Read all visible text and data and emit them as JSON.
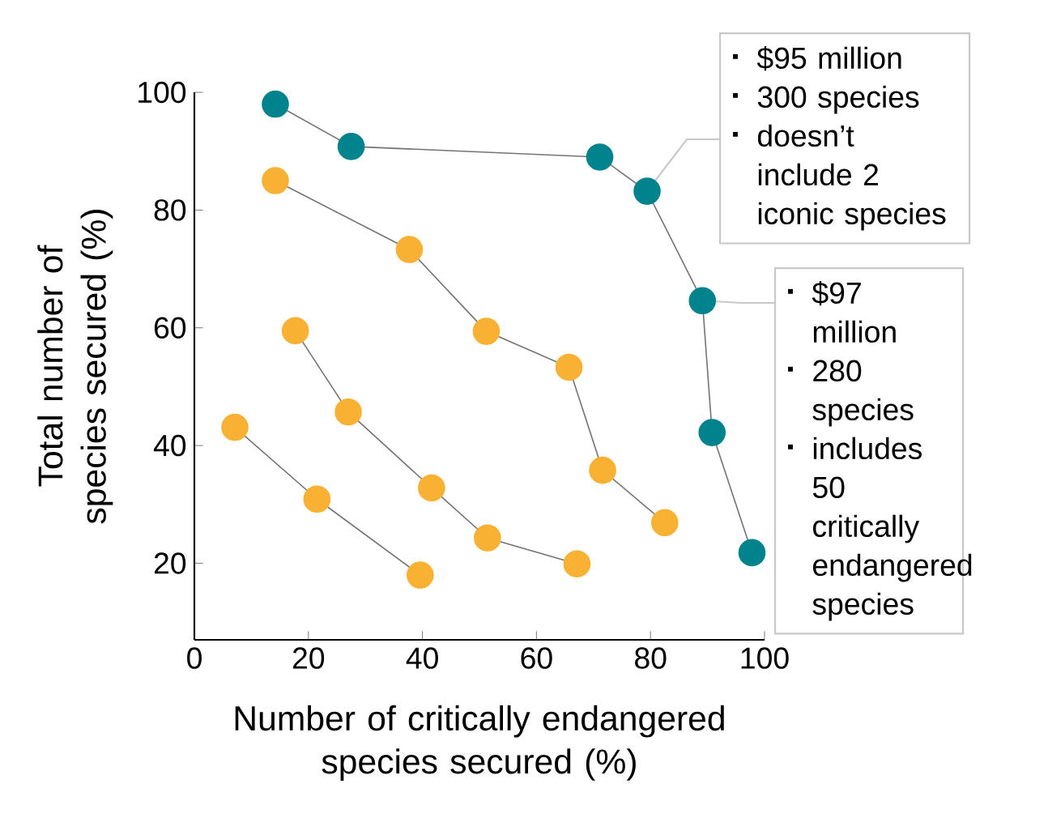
{
  "chart_data": {
    "type": "line",
    "xlabel": "Number of critically endangered species secured (%)",
    "ylabel": "Total number of species secured (%)",
    "xlim": [
      0,
      100
    ],
    "ylim": [
      7,
      100
    ],
    "xticks": [
      0,
      20,
      40,
      60,
      80,
      100
    ],
    "yticks": [
      20,
      40,
      60,
      80,
      100
    ],
    "marker": "circle",
    "series": [
      {
        "color": "#00838c",
        "x": [
          14.2,
          27.5,
          71.1,
          79.4,
          89.1,
          90.8,
          97.8
        ],
        "values": [
          98.0,
          90.8,
          89.0,
          83.2,
          64.6,
          42.2,
          21.8
        ]
      },
      {
        "color": "#f8b133",
        "x": [
          14.2,
          37.7,
          51.2,
          65.7,
          71.6,
          82.5
        ],
        "values": [
          85.0,
          73.3,
          59.4,
          53.3,
          35.8,
          26.9
        ]
      },
      {
        "color": "#f8b133",
        "x": [
          17.7,
          27.0,
          41.6,
          51.4,
          67.1
        ],
        "values": [
          59.5,
          45.7,
          32.8,
          24.3,
          19.9
        ]
      },
      {
        "color": "#f8b133",
        "x": [
          7.1,
          21.5,
          39.6
        ],
        "values": [
          43.1,
          30.9,
          18.0
        ]
      }
    ],
    "annotations": [
      "$95 million",
      "300 species",
      {
        "text": "doesn’t include 2 iconic species",
        "x": 79.4,
        "y": 83.2
      },
      {
        "text": "$97 million",
        "x": 89.1,
        "y": 64.6
      },
      "280 species",
      "includes 50 critically endangered species"
    ]
  }
}
